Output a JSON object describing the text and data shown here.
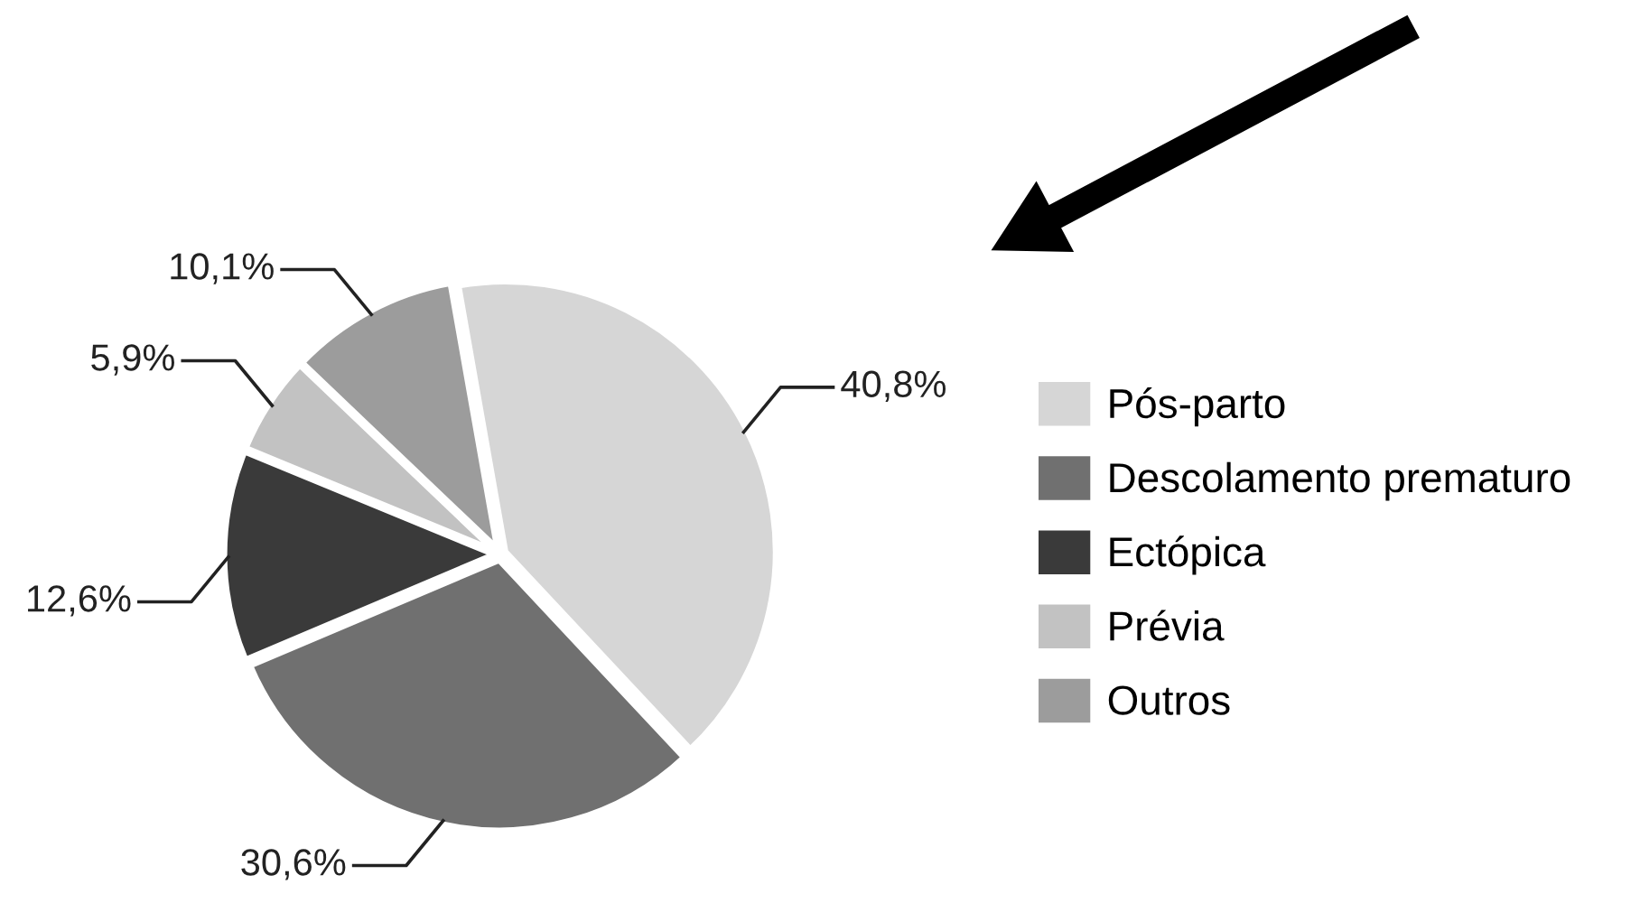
{
  "chart_data": {
    "type": "pie",
    "categories": [
      "Pós-parto",
      "Descolamento prematuro",
      "Ectópica",
      "Prévia",
      "Outros"
    ],
    "values": [
      40.8,
      30.6,
      12.6,
      5.9,
      10.1
    ],
    "colors": [
      "#d6d6d6",
      "#707070",
      "#3a3a3a",
      "#c2c2c2",
      "#9c9c9c"
    ],
    "value_labels": [
      "40,8%",
      "30,6%",
      "12,6%",
      "5,9%",
      "10,1%"
    ],
    "legend": "right"
  }
}
